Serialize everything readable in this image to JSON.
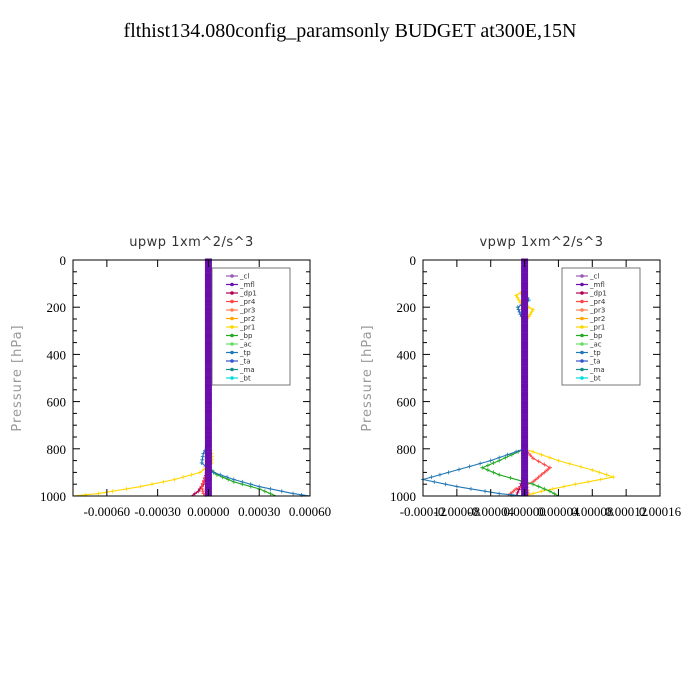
{
  "figure": {
    "title": "flthist134.080config_paramsonly  BUDGET at300E,15N"
  },
  "chart_data": [
    {
      "type": "line",
      "title": "upwp   1xm^2/s^3",
      "ylabel": "Pressure [hPa]",
      "ylim": [
        1000,
        0
      ],
      "xlim": [
        -0.0008,
        0.0006
      ],
      "x_ticks": [
        -0.0006,
        -0.0003,
        0.0,
        0.0003,
        0.0006
      ],
      "x_tick_labels": [
        "-0.00060",
        "-0.00030",
        "0.00000",
        "0.00030",
        "0.00060"
      ],
      "y_ticks": [
        0,
        200,
        400,
        600,
        800,
        1000
      ],
      "y_tick_labels": [
        "0",
        "200",
        "400",
        "600",
        "800",
        "1000"
      ],
      "legend_position": "top-right",
      "series": [
        {
          "name": "_cl",
          "color": "#9b59b6",
          "p": [
            0,
            1000
          ],
          "x": [
            0,
            0
          ]
        },
        {
          "name": "_mfl",
          "color": "#6a0dad",
          "p": [
            0,
            1000
          ],
          "x": [
            0,
            0
          ]
        },
        {
          "name": "_dp1",
          "color": "#b0004f",
          "p": [
            0,
            800,
            900,
            950,
            980,
            1000
          ],
          "x": [
            0,
            0,
            -1e-05,
            -3e-05,
            -6e-05,
            -0.0001
          ]
        },
        {
          "name": "_pr4",
          "color": "#ff4444",
          "p": [
            0,
            880,
            920,
            960,
            990,
            1000
          ],
          "x": [
            0,
            0,
            -2e-05,
            -4e-05,
            -3e-05,
            0
          ]
        },
        {
          "name": "_pr3",
          "color": "#ff7f50",
          "p": [
            0,
            900,
            950,
            1000
          ],
          "x": [
            0,
            0,
            -1e-05,
            -2e-05
          ]
        },
        {
          "name": "_pr2",
          "color": "#ffa500",
          "p": [
            0,
            850,
            900,
            1000
          ],
          "x": [
            0,
            0,
            1e-05,
            0
          ]
        },
        {
          "name": "_pr1",
          "color": "#ffd700",
          "p": [
            0,
            780,
            820,
            860,
            900,
            930,
            960,
            990,
            1000
          ],
          "x": [
            0,
            0,
            2e-05,
            2e-05,
            -5e-05,
            -0.0002,
            -0.0004,
            -0.00065,
            -0.0008
          ]
        },
        {
          "name": "_bp",
          "color": "#22aa22",
          "p": [
            0,
            880,
            910,
            940,
            970,
            1000
          ],
          "x": [
            0,
            0,
            5e-05,
            0.00015,
            0.0003,
            0.0004
          ]
        },
        {
          "name": "_ac",
          "color": "#66dd66",
          "p": [
            0,
            1000
          ],
          "x": [
            0,
            0
          ]
        },
        {
          "name": "_tp",
          "color": "#1f77b4",
          "p": [
            0,
            780,
            820,
            860,
            900,
            930,
            960,
            990,
            1000
          ],
          "x": [
            0,
            0,
            -3e-05,
            -4e-05,
            3e-05,
            0.00015,
            0.0003,
            0.0005,
            0.0006
          ]
        },
        {
          "name": "_ta",
          "color": "#3355cc",
          "p": [
            0,
            1000
          ],
          "x": [
            0,
            0
          ]
        },
        {
          "name": "_ma",
          "color": "#1a8c8c",
          "p": [
            0,
            1000
          ],
          "x": [
            0,
            0
          ]
        },
        {
          "name": "_bt",
          "color": "#00dddd",
          "p": [
            0,
            1000
          ],
          "x": [
            0,
            0
          ]
        }
      ]
    },
    {
      "type": "line",
      "title": "vpwp   1xm^2/s^3",
      "ylabel": "Pressure [hPa]",
      "ylim": [
        1000,
        0
      ],
      "xlim": [
        -0.00012,
        0.00016
      ],
      "x_ticks": [
        -0.00012,
        -8e-05,
        -4e-05,
        0.0,
        4e-05,
        8e-05,
        0.00012,
        0.00016
      ],
      "x_tick_labels": [
        "-0.00012",
        "-0.00008",
        "-0.00004",
        "0.00000",
        "0.00004",
        "0.00008",
        "0.00012",
        "0.00016"
      ],
      "y_ticks": [
        0,
        200,
        400,
        600,
        800,
        1000
      ],
      "y_tick_labels": [
        "0",
        "200",
        "400",
        "600",
        "800",
        "1000"
      ],
      "legend_position": "top-right",
      "series": [
        {
          "name": "_cl",
          "color": "#9b59b6",
          "p": [
            0,
            1000
          ],
          "x": [
            0,
            0
          ]
        },
        {
          "name": "_mfl",
          "color": "#6a0dad",
          "p": [
            0,
            1000
          ],
          "x": [
            0,
            0
          ]
        },
        {
          "name": "_dp1",
          "color": "#b0004f",
          "p": [
            0,
            900,
            960,
            1000
          ],
          "x": [
            0,
            0,
            -5e-06,
            -1e-05
          ]
        },
        {
          "name": "_pr4",
          "color": "#ff4444",
          "p": [
            0,
            800,
            840,
            880,
            910,
            940,
            970,
            1000
          ],
          "x": [
            0,
            0,
            1e-05,
            3e-05,
            2e-05,
            1e-05,
            -1e-05,
            -2e-05
          ]
        },
        {
          "name": "_pr3",
          "color": "#ff7f50",
          "p": [
            0,
            900,
            1000
          ],
          "x": [
            0,
            0,
            5e-06
          ]
        },
        {
          "name": "_pr2",
          "color": "#ffa500",
          "p": [
            0,
            1000
          ],
          "x": [
            0,
            0
          ]
        },
        {
          "name": "_pr1",
          "color": "#ffd700",
          "p": [
            0,
            130,
            150,
            180,
            210,
            240,
            260,
            800,
            850,
            890,
            920,
            950,
            980,
            1000
          ],
          "x": [
            0,
            0,
            -1e-05,
            -5e-06,
            1e-05,
            5e-06,
            0,
            0,
            4e-05,
            8e-05,
            0.000105,
            6e-05,
            2e-05,
            0
          ]
        },
        {
          "name": "_bp",
          "color": "#22aa22",
          "p": [
            0,
            800,
            850,
            880,
            910,
            950,
            980,
            1000
          ],
          "x": [
            0,
            0,
            -3e-05,
            -5e-05,
            -3e-05,
            1e-05,
            3e-05,
            4e-05
          ]
        },
        {
          "name": "_ac",
          "color": "#66dd66",
          "p": [
            0,
            1000
          ],
          "x": [
            0,
            0
          ]
        },
        {
          "name": "_tp",
          "color": "#1f77b4",
          "p": [
            0,
            140,
            170,
            200,
            230,
            260,
            800,
            850,
            900,
            930,
            960,
            990,
            1000
          ],
          "x": [
            0,
            0,
            5e-06,
            -8e-06,
            -5e-06,
            0,
            0,
            -4e-05,
            -9e-05,
            -0.00012,
            -8e-05,
            -3e-05,
            0
          ]
        },
        {
          "name": "_ta",
          "color": "#3355cc",
          "p": [
            0,
            1000
          ],
          "x": [
            0,
            0
          ]
        },
        {
          "name": "_ma",
          "color": "#1a8c8c",
          "p": [
            0,
            1000
          ],
          "x": [
            0,
            0
          ]
        },
        {
          "name": "_bt",
          "color": "#00dddd",
          "p": [
            0,
            1000
          ],
          "x": [
            0,
            0
          ]
        }
      ]
    }
  ]
}
